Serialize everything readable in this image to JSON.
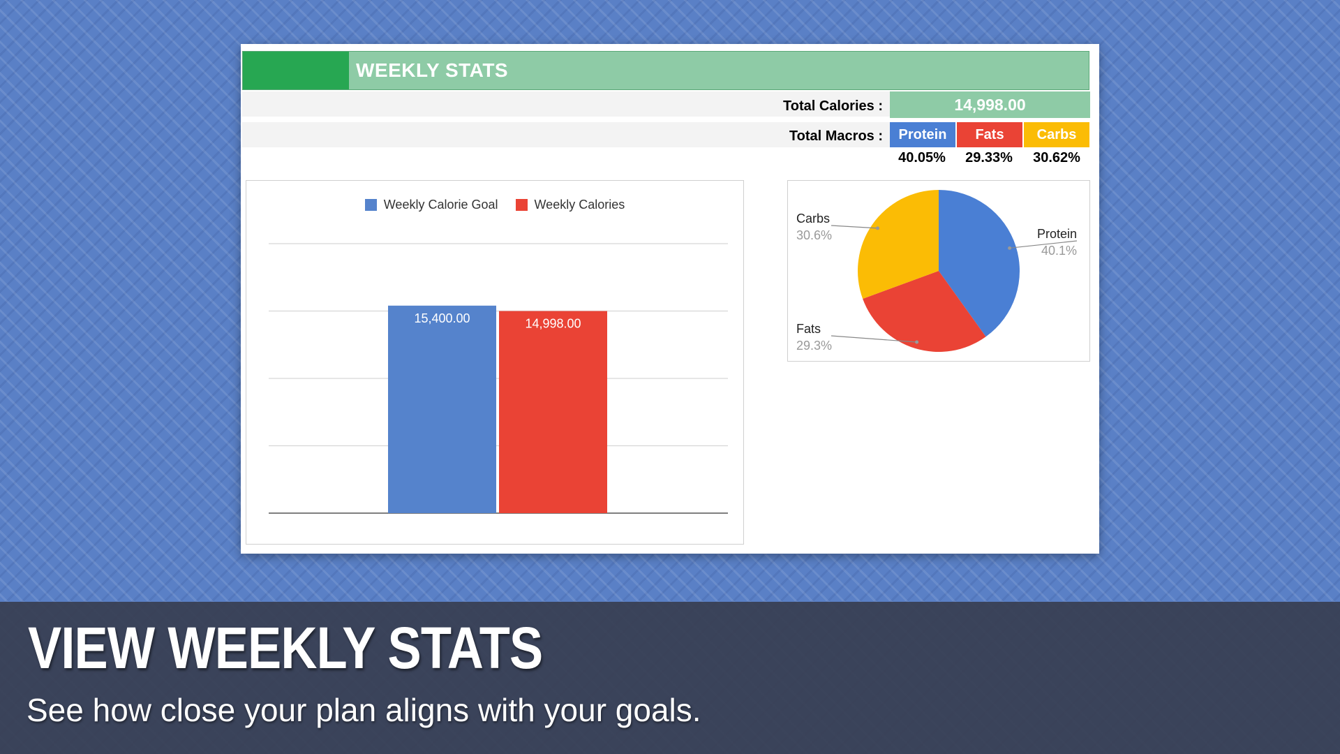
{
  "sheet": {
    "title": "WEEKLY STATS",
    "total_calories_label": "Total Calories :",
    "total_calories_value": "14,998.00",
    "total_macros_label": "Total Macros :",
    "macros": [
      {
        "name": "Protein",
        "pct": "40.05%",
        "color": "#4a7fd4"
      },
      {
        "name": "Fats",
        "pct": "29.33%",
        "color": "#ea4335"
      },
      {
        "name": "Carbs",
        "pct": "30.62%",
        "color": "#fbbc05"
      }
    ]
  },
  "chart_data": [
    {
      "type": "bar",
      "categories": [
        ""
      ],
      "series": [
        {
          "name": "Weekly Calorie Goal",
          "values": [
            15400
          ],
          "color": "#5583cc",
          "label": "15,400.00"
        },
        {
          "name": "Weekly Calories",
          "values": [
            14998
          ],
          "color": "#ea4335",
          "label": "14,998.00"
        }
      ],
      "ylim": [
        0,
        20000
      ],
      "grid": true,
      "legend": "top"
    },
    {
      "type": "pie",
      "slices": [
        {
          "name": "Protein",
          "value": 40.1,
          "label": "40.1%",
          "color": "#4a7fd4"
        },
        {
          "name": "Fats",
          "value": 29.3,
          "label": "29.3%",
          "color": "#ea4335"
        },
        {
          "name": "Carbs",
          "value": 30.6,
          "label": "30.6%",
          "color": "#fbbc05"
        }
      ]
    }
  ],
  "caption": {
    "title": "VIEW WEEKLY STATS",
    "subtitle": "See how close your plan aligns with your goals."
  }
}
